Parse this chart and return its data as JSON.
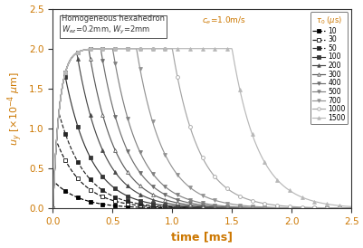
{
  "xlabel": "time [ms]",
  "ylabel": "u_y  [x10^{-4} μm]",
  "xlim": [
    0.0,
    2.5
  ],
  "ylim": [
    0.0,
    2.5
  ],
  "xticks": [
    0.0,
    0.5,
    1.0,
    1.5,
    2.0,
    2.5
  ],
  "yticks": [
    0.0,
    0.5,
    1.0,
    1.5,
    2.0,
    2.5
  ],
  "legend_title": "τ_0 (μs)",
  "tau_values": [
    10,
    30,
    50,
    100,
    200,
    300,
    400,
    500,
    700,
    1000,
    1500
  ],
  "U_sat": 2.0,
  "t_rise": 0.055,
  "t_decay": 0.22,
  "label_color": "#cc7700",
  "axis_color": "#cc7700",
  "watermark_color": "#c5daea",
  "fig_bg": "#ffffff",
  "box_text1": "Homogeneous hexahedron",
  "box_text2": "W_ez=0.2mm, W_y=2mm",
  "annot_text": "c_e=1.0m/s"
}
